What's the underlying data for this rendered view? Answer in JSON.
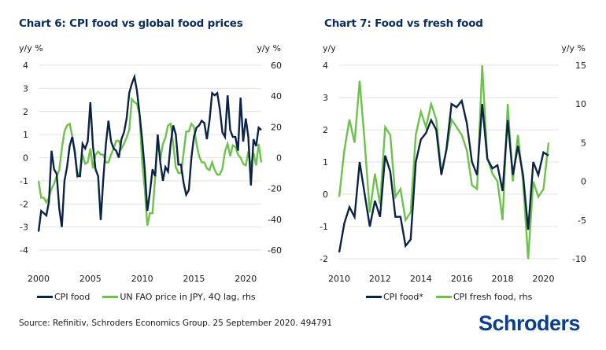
{
  "colors": {
    "navy": "#0b2344",
    "green": "#6cc24a",
    "title": "#0b2d5b",
    "logo": "#0b3f8c",
    "grid": "#e2e2e2"
  },
  "source": "Source: Refinitiv, Schroders Economics Group. 25 September 2020. 494791",
  "logo": "Schroders",
  "chart_data": [
    {
      "type": "line",
      "title": "Chart 6: CPI food vs global food prices",
      "ylabel": "y/y %",
      "y2label": "y/y %",
      "ylim": [
        -4,
        4
      ],
      "y2lim": [
        -60,
        60
      ],
      "yticks": [
        "4",
        "3",
        "2",
        "1",
        "0",
        "-1",
        "-2",
        "-3",
        "-4"
      ],
      "y2ticks": [
        "60",
        "40",
        "20",
        "0",
        "-20",
        "-40",
        "-60"
      ],
      "xlim": [
        2000,
        2021.5
      ],
      "xticks": [
        "2000",
        "2005",
        "2010",
        "2015",
        "2020"
      ],
      "grid": true,
      "legend_position": "bottom",
      "series": [
        {
          "name": "CPI food",
          "axis": "left",
          "color": "#0b2344",
          "start": 2000.0,
          "step": 0.25,
          "values": [
            -3.2,
            -2.3,
            -2.4,
            -2.5,
            -1.9,
            0.3,
            -0.5,
            -0.7,
            -2.2,
            -3.0,
            -1.0,
            -0.4,
            0.5,
            0.9,
            0.2,
            -0.8,
            -0.8,
            0.6,
            0.4,
            0.7,
            2.4,
            0.5,
            -0.5,
            -0.8,
            -2.7,
            -0.9,
            0.6,
            1.6,
            0.7,
            0.4,
            0.3,
            0.0,
            0.8,
            1.1,
            1.7,
            2.8,
            3.2,
            3.5,
            2.9,
            1.9,
            0.8,
            -0.5,
            -2.3,
            -1.5,
            -0.5,
            -0.8,
            1.0,
            -0.2,
            -1.0,
            -0.4,
            -0.6,
            0.6,
            1.4,
            1.0,
            -0.3,
            -0.3,
            -1.1,
            -1.6,
            -1.4,
            0.0,
            0.9,
            1.3,
            1.4,
            1.6,
            1.5,
            0.8,
            1.6,
            2.8,
            2.7,
            2.8,
            2.1,
            1.1,
            0.9,
            2.7,
            1.2,
            0.9,
            0.9,
            0.3,
            2.6,
            0.7,
            1.7,
            0.9,
            -1.2,
            0.8,
            0.5,
            1.3,
            1.2
          ]
        },
        {
          "name": "UN FAO price in JPY, 4Q lag, rhs",
          "axis": "right",
          "color": "#6cc24a",
          "start": 2000.0,
          "step": 0.25,
          "values": [
            -15,
            -26,
            -26,
            -29,
            -26,
            -20,
            -17,
            -12,
            -8,
            6,
            17,
            21,
            22,
            14,
            5,
            -12,
            -9,
            2,
            -4,
            -3,
            6,
            -7,
            2,
            4,
            2,
            2,
            -3,
            -3,
            2,
            6,
            11,
            11,
            6,
            9,
            13,
            18,
            38,
            36,
            35,
            28,
            -3,
            -20,
            -44,
            -36,
            -36,
            -13,
            11,
            -1,
            9,
            13,
            21,
            22,
            9,
            -6,
            -10,
            -10,
            3,
            17,
            17,
            22,
            20,
            9,
            1,
            -3,
            -3,
            -7,
            -8,
            -3,
            -8,
            -11,
            -11,
            -7,
            4,
            9,
            1,
            8,
            7,
            2,
            0,
            -4,
            -5,
            4,
            -6,
            3,
            -5,
            9,
            -3
          ]
        }
      ]
    },
    {
      "type": "line",
      "title": "Chart 7: Food vs fresh food",
      "ylabel": "y/y",
      "y2label": "y/y %",
      "ylim": [
        -2,
        4
      ],
      "y2lim": [
        -10,
        15
      ],
      "yticks": [
        "4",
        "3",
        "2",
        "1",
        "0",
        "-1",
        "-2"
      ],
      "y2ticks": [
        "15",
        "10",
        "5",
        "0",
        "-5",
        "-10"
      ],
      "xlim": [
        2010,
        2020.75
      ],
      "xticks": [
        "2010",
        "2012",
        "2014",
        "2016",
        "2018",
        "2020"
      ],
      "grid": true,
      "legend_position": "bottom",
      "series": [
        {
          "name": "CPI food*",
          "axis": "left",
          "color": "#0b2344",
          "start": 2010.0,
          "step": 0.25,
          "values": [
            -1.8,
            -0.9,
            -0.4,
            -0.7,
            1.0,
            0.0,
            -1.0,
            -0.2,
            -0.7,
            1.2,
            0.7,
            -0.7,
            -0.7,
            -1.6,
            -1.4,
            1.0,
            1.7,
            1.9,
            2.3,
            2.0,
            0.6,
            1.4,
            2.8,
            2.7,
            2.9,
            2.2,
            1.0,
            0.6,
            2.8,
            1.1,
            0.8,
            0.9,
            0.1,
            2.3,
            0.6,
            1.5,
            0.6,
            -1.1,
            1.0,
            0.6,
            1.3,
            1.2
          ]
        },
        {
          "name": "CPI fresh food, rhs",
          "axis": "right",
          "color": "#6cc24a",
          "start": 2010.0,
          "step": 0.25,
          "values": [
            -2,
            4,
            8,
            5,
            13,
            5,
            -4,
            1,
            -3,
            7,
            6,
            -2,
            -1,
            -5,
            -4,
            6,
            9,
            7,
            10,
            8,
            1,
            4,
            8,
            7,
            6,
            4,
            -0.5,
            -1,
            15,
            3,
            1,
            0,
            -5,
            10,
            0,
            6,
            0,
            -10,
            0,
            -2,
            -1,
            5
          ]
        }
      ]
    }
  ]
}
